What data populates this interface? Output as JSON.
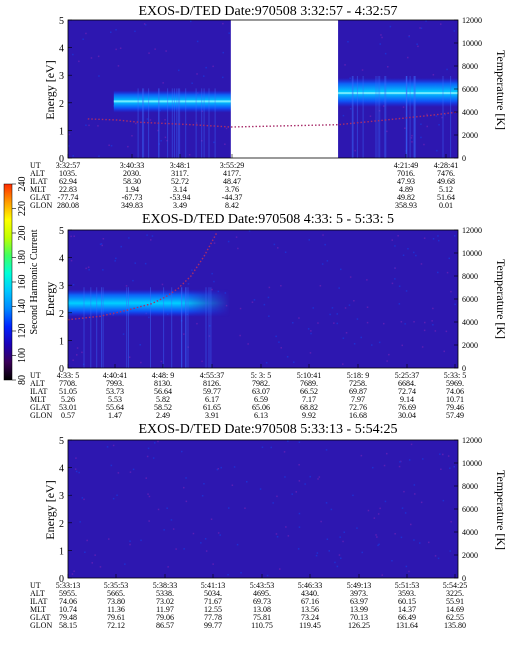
{
  "figure": {
    "colorbar": {
      "label": "Second Harmonic Current",
      "ticks": [
        "80",
        "100",
        "120",
        "140",
        "160",
        "180",
        "200",
        "220",
        "240"
      ],
      "colors": [
        "#000000",
        "#3a0058",
        "#1b00b8",
        "#0022ff",
        "#0088ff",
        "#00c8ff",
        "#00ffd8",
        "#40ff60",
        "#c0ff00",
        "#ffff00",
        "#ff9a00",
        "#ff2a00"
      ]
    },
    "colors": {
      "background": "#2d17b0",
      "trace": "#a82d6a",
      "band": "#00d2ff"
    },
    "panels": [
      {
        "title": "EXOS-D/TED   Date:970508   3:32:57 - 4:32:57",
        "ylabel": "Energy [eV]",
        "y2label": "Temperature [K]",
        "yticks": [
          "0",
          "1",
          "2",
          "3",
          "4",
          "5"
        ],
        "y2ticks": [
          "0",
          "2000",
          "4000",
          "6000",
          "8000",
          "10000",
          "12000"
        ],
        "eph_labels": [
          "UT",
          "ALT",
          "ILAT",
          "MLT",
          "GLAT",
          "GLON"
        ],
        "eph": [
          {
            "UT": "3:32:57",
            "ALT": "1035.",
            "ILAT": "62.94",
            "MLT": "22.83",
            "GLAT": "-77.74",
            "GLON": "280.08"
          },
          {
            "UT": "3:40:33",
            "ALT": "2030.",
            "ILAT": "58.30",
            "MLT": "1.94",
            "GLAT": "-67.73",
            "GLON": "349.83"
          },
          {
            "UT": "3:48:1",
            "ALT": "3117.",
            "ILAT": "52.72",
            "MLT": "3.14",
            "GLAT": "-53.94",
            "GLON": "3.49"
          },
          {
            "UT": "3:55:29",
            "ALT": "4177.",
            "ILAT": "48.47",
            "MLT": "3.76",
            "GLAT": "-44.37",
            "GLON": "8.42"
          },
          {
            "UT": "4:21:49",
            "ALT": "7016.",
            "ILAT": "47.93",
            "MLT": "4.89",
            "GLAT": "49.82",
            "GLON": "358.93"
          },
          {
            "UT": "4:28:41",
            "ALT": "7476.",
            "ILAT": "49.68",
            "MLT": "5.12",
            "GLAT": "51.64",
            "GLON": "0.01"
          }
        ]
      },
      {
        "title": "EXOS-D/TED   Date:970508   4:33: 5 - 5:33: 5",
        "ylabel": "Energy",
        "y2label": "Temperature [K]",
        "yticks": [
          "0",
          "1",
          "2",
          "3",
          "4",
          "5"
        ],
        "y2ticks": [
          "0",
          "2000",
          "4000",
          "6000",
          "8000",
          "10000",
          "12000"
        ],
        "eph_labels": [
          "UT",
          "ALT",
          "ILAT",
          "MLT",
          "GLAT",
          "GLON"
        ],
        "eph": [
          {
            "UT": "4:33: 5",
            "ALT": "7708.",
            "ILAT": "51.05",
            "MLT": "5.26",
            "GLAT": "53.01",
            "GLON": "0.57"
          },
          {
            "UT": "4:40:41",
            "ALT": "7993.",
            "ILAT": "53.73",
            "MLT": "5.53",
            "GLAT": "55.64",
            "GLON": "1.47"
          },
          {
            "UT": "4:48: 9",
            "ALT": "8130.",
            "ILAT": "56.64",
            "MLT": "5.82",
            "GLAT": "58.52",
            "GLON": "2.49"
          },
          {
            "UT": "4:55:37",
            "ALT": "8126.",
            "ILAT": "59.77",
            "MLT": "6.17",
            "GLAT": "61.65",
            "GLON": "3.91"
          },
          {
            "UT": "5: 3: 5",
            "ALT": "7982.",
            "ILAT": "63.07",
            "MLT": "6.59",
            "GLAT": "65.06",
            "GLON": "6.13"
          },
          {
            "UT": "5:10:41",
            "ALT": "7689.",
            "ILAT": "66.52",
            "MLT": "7.17",
            "GLAT": "68.82",
            "GLON": "9.92"
          },
          {
            "UT": "5:18: 9",
            "ALT": "7258.",
            "ILAT": "69.87",
            "MLT": "7.97",
            "GLAT": "72.76",
            "GLON": "16.68"
          },
          {
            "UT": "5:25:37",
            "ALT": "6684.",
            "ILAT": "72.74",
            "MLT": "9.14",
            "GLAT": "76.69",
            "GLON": "30.04"
          },
          {
            "UT": "5:33: 5",
            "ALT": "5969.",
            "ILAT": "74.06",
            "MLT": "10.71",
            "GLAT": "79.46",
            "GLON": "57.49"
          }
        ]
      },
      {
        "title": "EXOS-D/TED   Date:970508   5:33:13 - 5:54:25",
        "ylabel": "Energy [eV]",
        "y2label": "Temperature [K]",
        "yticks": [
          "0",
          "1",
          "2",
          "3",
          "4",
          "5"
        ],
        "y2ticks": [
          "0",
          "2000",
          "4000",
          "6000",
          "8000",
          "10000",
          "12000"
        ],
        "eph_labels": [
          "UT",
          "ALT",
          "ILAT",
          "MLT",
          "GLAT",
          "GLON"
        ],
        "eph": [
          {
            "UT": "5:33:13",
            "ALT": "5955.",
            "ILAT": "74.06",
            "MLT": "10.74",
            "GLAT": "79.48",
            "GLON": "58.15"
          },
          {
            "UT": "5:35:53",
            "ALT": "5665.",
            "ILAT": "73.80",
            "MLT": "11.36",
            "GLAT": "79.61",
            "GLON": "72.12"
          },
          {
            "UT": "5:38:33",
            "ALT": "5338.",
            "ILAT": "73.02",
            "MLT": "11.97",
            "GLAT": "79.06",
            "GLON": "86.57"
          },
          {
            "UT": "5:41:13",
            "ALT": "5034.",
            "ILAT": "71.67",
            "MLT": "12.55",
            "GLAT": "77.78",
            "GLON": "99.77"
          },
          {
            "UT": "5:43:53",
            "ALT": "4695.",
            "ILAT": "69.73",
            "MLT": "13.08",
            "GLAT": "75.81",
            "GLON": "110.75"
          },
          {
            "UT": "5:46:33",
            "ALT": "4340.",
            "ILAT": "67.16",
            "MLT": "13.56",
            "GLAT": "73.24",
            "GLON": "119.45"
          },
          {
            "UT": "5:49:13",
            "ALT": "3973.",
            "ILAT": "63.97",
            "MLT": "13.99",
            "GLAT": "70.13",
            "GLON": "126.25"
          },
          {
            "UT": "5:51:53",
            "ALT": "3593.",
            "ILAT": "60.15",
            "MLT": "14.37",
            "GLAT": "66.49",
            "GLON": "131.64"
          },
          {
            "UT": "5:54:25",
            "ALT": "3225.",
            "ILAT": "55.91",
            "MLT": "14.69",
            "GLAT": "62.55",
            "GLON": "135.80"
          }
        ]
      }
    ]
  },
  "chart_data": [
    {
      "type": "heatmap",
      "title": "EXOS-D/TED   Date:970508   3:32:57 - 4:32:57",
      "xlabel": "UT",
      "ylabel": "Energy [eV]",
      "y2label": "Temperature [K]",
      "ylim": [
        0,
        5
      ],
      "y2lim": [
        0,
        12000
      ],
      "xlim": [
        "3:32:57",
        "4:32:57"
      ],
      "colorbar": {
        "label": "Second Harmonic Current",
        "range": [
          80,
          240
        ]
      },
      "data_gaps": [
        [
          "3:58:00",
          "4:14:30"
        ]
      ],
      "bands": [
        {
          "x": [
            "3:40:00",
            "3:58:00"
          ],
          "energy_low": 1.65,
          "energy_high": 2.45,
          "peak_energy": 2.05
        },
        {
          "x": [
            "4:14:30",
            "4:32:57"
          ],
          "energy_low": 1.85,
          "energy_high": 2.9,
          "peak_energy": 2.35
        }
      ],
      "temperature": {
        "x": [
          "3:36:00",
          "3:40:33",
          "3:44:00",
          "3:48:00",
          "3:52:00",
          "3:58:00",
          "4:14:30",
          "4:21:49",
          "4:28:41",
          "4:32:57"
        ],
        "y": [
          3400,
          3300,
          3100,
          3000,
          2900,
          2700,
          2900,
          3300,
          3700,
          4000
        ]
      },
      "ticks": [
        "3:32:57",
        "3:40:33",
        "3:48:1",
        "3:55:29",
        "4:21:49",
        "4:28:41"
      ]
    },
    {
      "type": "heatmap",
      "title": "EXOS-D/TED   Date:970508   4:33: 5 - 5:33: 5",
      "xlabel": "UT",
      "ylabel": "Energy",
      "y2label": "Temperature [K]",
      "ylim": [
        0,
        5
      ],
      "y2lim": [
        0,
        12000
      ],
      "xlim": [
        "4:33: 5",
        "5:33: 5"
      ],
      "colorbar": {
        "label": "Second Harmonic Current",
        "range": [
          80,
          240
        ]
      },
      "bands": [
        {
          "x": [
            "4:33: 5",
            "4:58:00"
          ],
          "energy_low": 1.85,
          "energy_high": 2.85,
          "peak_energy": 2.4
        }
      ],
      "temperature": {
        "x": [
          "4:33: 5",
          "4:38:00",
          "4:42:00",
          "4:46:00",
          "4:48: 9",
          "4:50:00",
          "4:52:00",
          "4:54:00",
          "4:56:00"
        ],
        "y": [
          4200,
          4500,
          5000,
          5600,
          6200,
          6900,
          8000,
          9700,
          11800
        ]
      },
      "ticks": [
        "4:33: 5",
        "4:40:41",
        "4:48: 9",
        "4:55:37",
        "5: 3: 5",
        "5:10:41",
        "5:18: 9",
        "5:25:37",
        "5:33: 5"
      ]
    },
    {
      "type": "heatmap",
      "title": "EXOS-D/TED   Date:970508   5:33:13 - 5:54:25",
      "xlabel": "UT",
      "ylabel": "Energy [eV]",
      "y2label": "Temperature [K]",
      "ylim": [
        0,
        5
      ],
      "y2lim": [
        0,
        12000
      ],
      "xlim": [
        "5:33:13",
        "5:54:25"
      ],
      "colorbar": {
        "label": "Second Harmonic Current",
        "range": [
          80,
          240
        ]
      },
      "bands": [],
      "temperature": {
        "x": [],
        "y": []
      },
      "ticks": [
        "5:33:13",
        "5:35:53",
        "5:38:33",
        "5:41:13",
        "5:43:53",
        "5:46:33",
        "5:49:13",
        "5:51:53",
        "5:54:25"
      ]
    }
  ]
}
